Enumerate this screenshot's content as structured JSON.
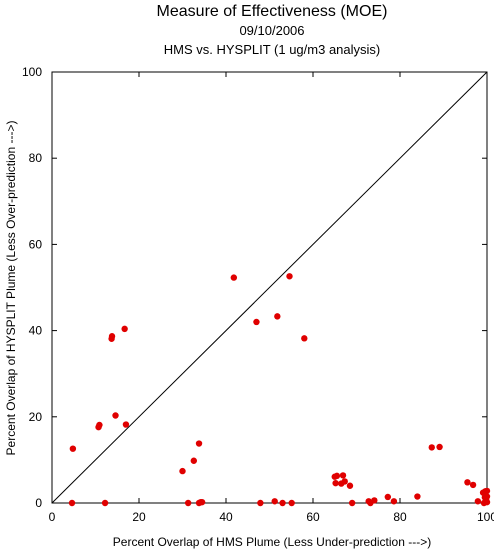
{
  "chart_data": {
    "type": "scatter",
    "title": "Measure of Effectiveness (MOE)",
    "subtitle": [
      "09/10/2006",
      "HMS vs. HYSPLIT  (1 ug/m3 analysis)"
    ],
    "xlabel": "Percent Overlap of HMS Plume (Less Under-prediction --->)",
    "ylabel": "Percent Overlap of HYSPLIT Plume (Less Over-prediction --->)",
    "xlim": [
      0,
      100
    ],
    "ylim": [
      0,
      100
    ],
    "xticks": [
      "0",
      "20",
      "40",
      "60",
      "80",
      "100"
    ],
    "yticks": [
      "0",
      "20",
      "40",
      "60",
      "80",
      "100"
    ],
    "reference_line": "y = x",
    "marker_color": "#e00000",
    "points": [
      {
        "x": 4.8,
        "y": 12.6
      },
      {
        "x": 4.6,
        "y": 0.0
      },
      {
        "x": 10.7,
        "y": 17.6
      },
      {
        "x": 10.9,
        "y": 18.1
      },
      {
        "x": 12.2,
        "y": 0.0
      },
      {
        "x": 13.7,
        "y": 38.1
      },
      {
        "x": 13.8,
        "y": 38.7
      },
      {
        "x": 14.6,
        "y": 20.3
      },
      {
        "x": 16.7,
        "y": 40.4
      },
      {
        "x": 17.0,
        "y": 18.2
      },
      {
        "x": 30.0,
        "y": 7.4
      },
      {
        "x": 31.3,
        "y": 0.0
      },
      {
        "x": 32.6,
        "y": 9.8
      },
      {
        "x": 33.8,
        "y": 13.8
      },
      {
        "x": 33.8,
        "y": 0.0
      },
      {
        "x": 34.2,
        "y": 0.2
      },
      {
        "x": 34.5,
        "y": 0.2
      },
      {
        "x": 41.8,
        "y": 52.3
      },
      {
        "x": 47.0,
        "y": 42.0
      },
      {
        "x": 47.9,
        "y": 0.0
      },
      {
        "x": 51.2,
        "y": 0.4
      },
      {
        "x": 51.8,
        "y": 43.3
      },
      {
        "x": 53.0,
        "y": 0.0
      },
      {
        "x": 54.6,
        "y": 52.6
      },
      {
        "x": 55.1,
        "y": 0.0
      },
      {
        "x": 58.0,
        "y": 38.2
      },
      {
        "x": 65.0,
        "y": 6.1
      },
      {
        "x": 65.5,
        "y": 6.3
      },
      {
        "x": 65.2,
        "y": 4.6
      },
      {
        "x": 66.5,
        "y": 4.5
      },
      {
        "x": 66.9,
        "y": 6.4
      },
      {
        "x": 67.3,
        "y": 5.0
      },
      {
        "x": 68.5,
        "y": 4.0
      },
      {
        "x": 69.0,
        "y": 0.0
      },
      {
        "x": 72.8,
        "y": 0.4
      },
      {
        "x": 73.2,
        "y": 0.0
      },
      {
        "x": 74.1,
        "y": 0.6
      },
      {
        "x": 77.2,
        "y": 1.4
      },
      {
        "x": 78.6,
        "y": 0.4
      },
      {
        "x": 84.0,
        "y": 1.5
      },
      {
        "x": 87.3,
        "y": 12.9
      },
      {
        "x": 89.1,
        "y": 13.0
      },
      {
        "x": 95.5,
        "y": 4.8
      },
      {
        "x": 96.8,
        "y": 4.2
      },
      {
        "x": 97.9,
        "y": 0.4
      },
      {
        "x": 99.1,
        "y": 2.4
      },
      {
        "x": 99.5,
        "y": 1.3
      },
      {
        "x": 99.6,
        "y": 2.7
      },
      {
        "x": 99.8,
        "y": 0.8
      },
      {
        "x": 100.0,
        "y": 2.8
      },
      {
        "x": 100.0,
        "y": 0.2
      },
      {
        "x": 100.0,
        "y": 1.5
      },
      {
        "x": 99.3,
        "y": 0.0
      }
    ]
  }
}
